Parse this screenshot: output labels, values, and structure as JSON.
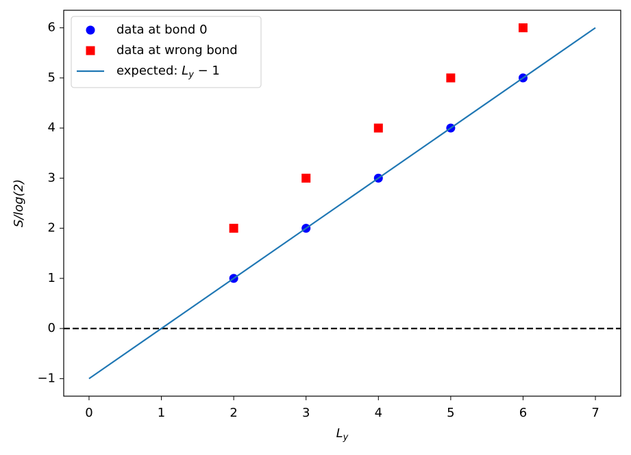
{
  "chart_data": {
    "type": "line",
    "xlabel": "L_y",
    "ylabel": "S/log(2)",
    "xlim": [
      -0.35,
      7.35
    ],
    "ylim": [
      -1.35,
      6.35
    ],
    "xticks": [
      0,
      1,
      2,
      3,
      4,
      5,
      6,
      7
    ],
    "yticks": [
      {
        "value": -1,
        "label": "−1"
      },
      0,
      1,
      2,
      3,
      4,
      5,
      6
    ],
    "legend": "upper left",
    "series": [
      {
        "name": "data at bond 0",
        "color": "#0000ff",
        "marker": "circle",
        "x": [
          2,
          3,
          4,
          5,
          6
        ],
        "values": [
          1,
          2,
          3,
          4,
          5
        ]
      },
      {
        "name": "data at wrong bond",
        "color": "#ff0000",
        "marker": "square",
        "x": [
          2,
          3,
          4,
          5,
          6
        ],
        "values": [
          2,
          3,
          4,
          5,
          6
        ]
      },
      {
        "name": "expected: L_y − 1",
        "color": "#1f77b4",
        "marker": "none",
        "x": [
          0,
          7
        ],
        "values": [
          -1,
          6
        ]
      }
    ],
    "hlines": [
      {
        "value": 0,
        "color": "#000000",
        "style": "dashed"
      }
    ]
  }
}
